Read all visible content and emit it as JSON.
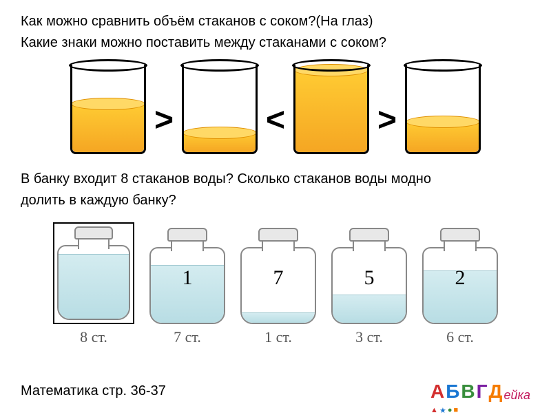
{
  "question1": "Как можно сравнить объём стаканов с соком?(На глаз)",
  "question2": "Какие знаки можно поставить между стаканами с соком?",
  "question3_line1": "В банку входит 8 стаканов воды? Сколько стаканов воды модно",
  "question3_line2": "долить в каждую банку?",
  "footer": "Математика стр. 36-37",
  "glasses": {
    "fill_color": "#f5a623",
    "items": [
      {
        "fill_percent": 55
      },
      {
        "fill_percent": 22
      },
      {
        "fill_percent": 92
      },
      {
        "fill_percent": 35
      }
    ],
    "signs": [
      ">",
      "<",
      ">"
    ]
  },
  "jars": {
    "water_color": "#b8dde4",
    "items": [
      {
        "fill_percent": 90,
        "overlay": "",
        "label": "8 ст.",
        "framed": true
      },
      {
        "fill_percent": 78,
        "overlay": "1",
        "label": "7 ст.",
        "framed": false
      },
      {
        "fill_percent": 14,
        "overlay": "7",
        "label": "1 ст.",
        "framed": false
      },
      {
        "fill_percent": 38,
        "overlay": "5",
        "label": "3 ст.",
        "framed": false
      },
      {
        "fill_percent": 70,
        "overlay": "2",
        "label": "6 ст.",
        "framed": false
      }
    ]
  },
  "logo": {
    "letters": [
      "А",
      "Б",
      "В",
      "Г",
      "Д"
    ],
    "suffix": "ейка"
  }
}
